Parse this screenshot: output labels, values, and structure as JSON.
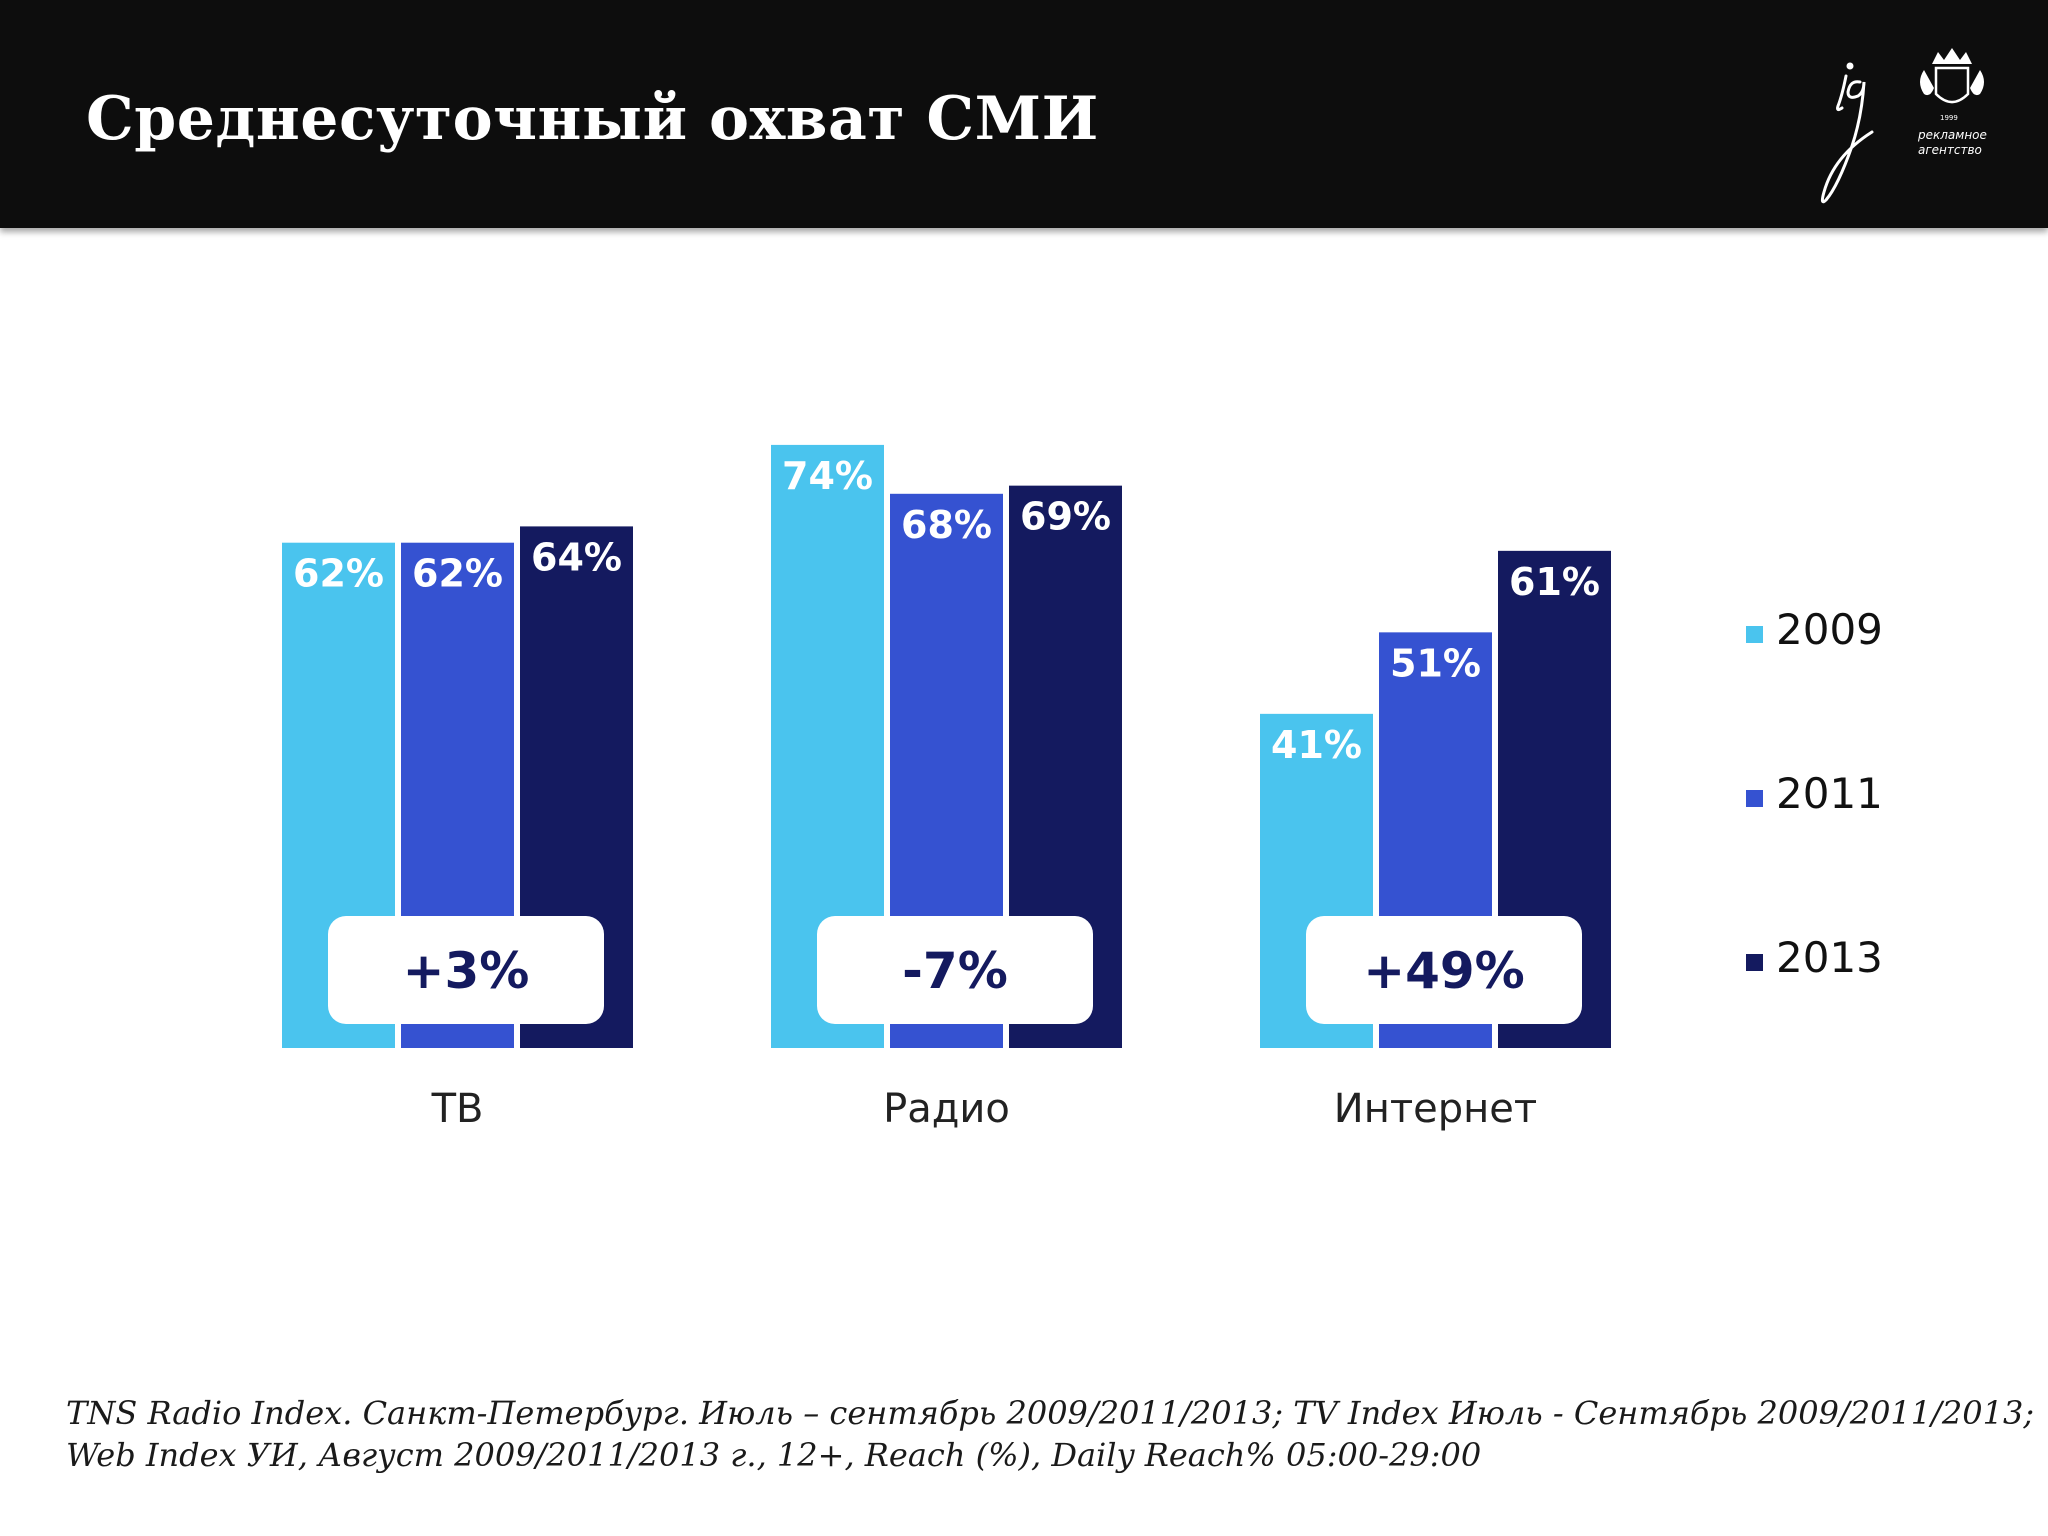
{
  "header": {
    "title": "Среднесуточный охват СМИ",
    "logo": {
      "icon": "ig-logo-icon",
      "line1": "рекламное",
      "line2": "агентство",
      "year": "1999"
    }
  },
  "chart_data": {
    "type": "bar",
    "categories": [
      "ТВ",
      "Радио",
      "Интернет"
    ],
    "series": [
      {
        "name": "2009",
        "values": [
          62,
          74,
          41
        ],
        "color": "#4ac4ee"
      },
      {
        "name": "2011",
        "values": [
          62,
          68,
          51
        ],
        "color": "#3552d1"
      },
      {
        "name": "2013",
        "values": [
          64,
          69,
          61
        ],
        "color": "#141a5f"
      }
    ],
    "value_labels": [
      [
        "62%",
        "74%",
        "41%"
      ],
      [
        "62%",
        "68%",
        "51%"
      ],
      [
        "64%",
        "69%",
        "61%"
      ]
    ],
    "change_labels": [
      "+3%",
      "-7%",
      "+49%"
    ],
    "ylim": [
      0,
      100
    ],
    "grid": false,
    "legend_position": "right"
  },
  "footnote": {
    "line1": "TNS Radio Index. Санкт-Петербург. Июль – сентябрь 2009/2011/2013; TV Index Июль - Сентябрь 2009/2011/2013;",
    "line2": "Web Index УИ, Август 2009/2011/2013 г., 12+, Reach (%), Daily Reach% 05:00-29:00"
  }
}
